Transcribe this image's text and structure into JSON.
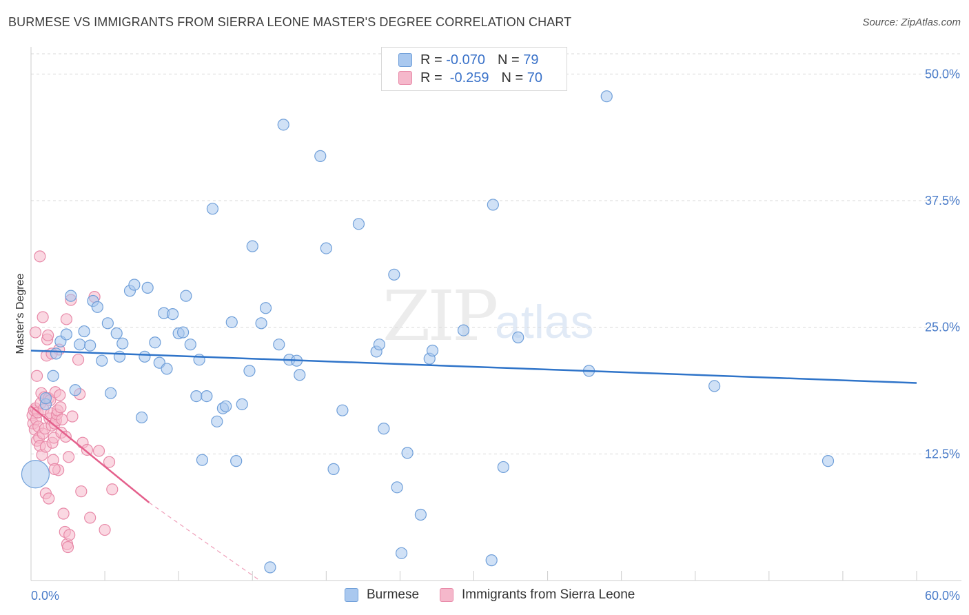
{
  "title": "BURMESE VS IMMIGRANTS FROM SIERRA LEONE MASTER'S DEGREE CORRELATION CHART",
  "source": "Source: ZipAtlas.com",
  "watermark": {
    "zip": "ZIP",
    "atlas": "atlas"
  },
  "colors": {
    "blue_fill": "#a9c8ef",
    "blue_stroke": "#6f9fd9",
    "blue_line": "#2f74c9",
    "pink_fill": "#f5b8cb",
    "pink_stroke": "#e889a8",
    "pink_line": "#e4608c",
    "grid": "#d9d9d9",
    "tick_label": "#4a7cc9"
  },
  "legend": {
    "rows": [
      {
        "r_label": "R = ",
        "r_value": "-0.070",
        "n_label": "N = ",
        "n_value": "79",
        "color": "#a9c8ef",
        "stroke": "#6f9fd9"
      },
      {
        "r_label": "R = ",
        "r_value": " -0.259",
        "n_label": "N = ",
        "n_value": "70",
        "color": "#f5b8cb",
        "stroke": "#e889a8"
      }
    ]
  },
  "bottom_legend": [
    {
      "label": "Burmese",
      "color": "#a9c8ef",
      "stroke": "#6f9fd9"
    },
    {
      "label": "Immigrants from Sierra Leone",
      "color": "#f5b8cb",
      "stroke": "#e889a8"
    }
  ],
  "chart_data": {
    "type": "scatter",
    "title": "BURMESE VS IMMIGRANTS FROM SIERRA LEONE MASTER'S DEGREE CORRELATION CHART",
    "xlabel": "",
    "ylabel": "Master's Degree",
    "xlim": [
      0,
      60
    ],
    "ylim": [
      0,
      52
    ],
    "x_tick_labels": [
      {
        "value": 0,
        "label": "0.0%"
      },
      {
        "value": 60,
        "label": "60.0%"
      }
    ],
    "y_tick_labels": [
      {
        "value": 12.5,
        "label": "12.5%"
      },
      {
        "value": 25,
        "label": "25.0%"
      },
      {
        "value": 37.5,
        "label": "37.5%"
      },
      {
        "value": 50,
        "label": "50.0%"
      }
    ],
    "series": [
      {
        "name": "Burmese",
        "r": -0.07,
        "n": 79,
        "trend": {
          "x0": 0,
          "y0": 22.7,
          "x1": 60,
          "y1": 19.5
        },
        "points": [
          [
            1.0,
            17.4
          ],
          [
            1.0,
            18.0
          ],
          [
            1.5,
            20.2
          ],
          [
            1.7,
            22.4
          ],
          [
            2.0,
            23.6
          ],
          [
            2.4,
            24.3
          ],
          [
            2.7,
            28.1
          ],
          [
            3.0,
            18.8
          ],
          [
            3.3,
            23.3
          ],
          [
            3.6,
            24.6
          ],
          [
            4.0,
            23.2
          ],
          [
            4.2,
            27.6
          ],
          [
            4.5,
            27.0
          ],
          [
            4.8,
            21.7
          ],
          [
            5.2,
            25.4
          ],
          [
            5.4,
            18.5
          ],
          [
            5.8,
            24.4
          ],
          [
            6.0,
            22.1
          ],
          [
            6.2,
            23.4
          ],
          [
            6.7,
            28.6
          ],
          [
            7.0,
            29.2
          ],
          [
            7.5,
            16.1
          ],
          [
            7.7,
            22.1
          ],
          [
            7.9,
            28.9
          ],
          [
            8.4,
            23.5
          ],
          [
            8.7,
            21.5
          ],
          [
            9.0,
            26.4
          ],
          [
            9.2,
            20.9
          ],
          [
            9.6,
            26.3
          ],
          [
            10.0,
            24.4
          ],
          [
            10.3,
            24.5
          ],
          [
            10.5,
            28.1
          ],
          [
            10.8,
            23.3
          ],
          [
            11.2,
            18.2
          ],
          [
            11.4,
            21.8
          ],
          [
            11.6,
            11.9
          ],
          [
            11.9,
            18.2
          ],
          [
            12.3,
            36.7
          ],
          [
            12.6,
            15.7
          ],
          [
            13.0,
            17.0
          ],
          [
            13.2,
            17.2
          ],
          [
            13.6,
            25.5
          ],
          [
            13.9,
            11.8
          ],
          [
            14.3,
            17.4
          ],
          [
            14.8,
            20.7
          ],
          [
            15.0,
            33.0
          ],
          [
            15.6,
            25.4
          ],
          [
            15.9,
            26.9
          ],
          [
            16.2,
            1.3
          ],
          [
            16.8,
            23.3
          ],
          [
            17.1,
            45.0
          ],
          [
            17.5,
            21.8
          ],
          [
            18.0,
            21.7
          ],
          [
            18.2,
            20.3
          ],
          [
            19.6,
            41.9
          ],
          [
            20.0,
            32.8
          ],
          [
            20.5,
            11.0
          ],
          [
            21.1,
            16.8
          ],
          [
            22.2,
            35.2
          ],
          [
            23.4,
            22.6
          ],
          [
            23.6,
            23.3
          ],
          [
            23.9,
            15.0
          ],
          [
            24.6,
            30.2
          ],
          [
            24.8,
            9.2
          ],
          [
            25.1,
            2.7
          ],
          [
            25.5,
            12.6
          ],
          [
            26.4,
            6.5
          ],
          [
            27.0,
            21.9
          ],
          [
            27.2,
            22.7
          ],
          [
            29.3,
            24.7
          ],
          [
            31.2,
            2.0
          ],
          [
            31.3,
            37.1
          ],
          [
            32.0,
            11.2
          ],
          [
            33.0,
            24.0
          ],
          [
            37.8,
            20.7
          ],
          [
            39.0,
            47.8
          ],
          [
            46.3,
            19.2
          ],
          [
            54.0,
            11.8
          ],
          [
            0.3,
            10.5
          ]
        ]
      },
      {
        "name": "Immigrants from Sierra Leone",
        "r": -0.259,
        "n": 70,
        "trend": {
          "x0": 0,
          "y0": 17.2,
          "x1": 8.0,
          "y1": 7.7
        },
        "trend_dashed": {
          "x0": 8.0,
          "y0": 7.7,
          "x1": 15.5,
          "y1": 0
        },
        "points": [
          [
            0.1,
            16.3
          ],
          [
            0.15,
            15.5
          ],
          [
            0.2,
            16.8
          ],
          [
            0.25,
            14.9
          ],
          [
            0.3,
            17.0
          ],
          [
            0.35,
            15.9
          ],
          [
            0.4,
            13.8
          ],
          [
            0.45,
            16.6
          ],
          [
            0.5,
            15.2
          ],
          [
            0.55,
            14.1
          ],
          [
            0.6,
            13.3
          ],
          [
            0.65,
            17.5
          ],
          [
            0.7,
            18.5
          ],
          [
            0.75,
            12.4
          ],
          [
            0.8,
            14.5
          ],
          [
            0.85,
            16.9
          ],
          [
            0.9,
            18.1
          ],
          [
            0.95,
            15.0
          ],
          [
            1.0,
            13.2
          ],
          [
            1.05,
            22.2
          ],
          [
            1.1,
            23.8
          ],
          [
            1.15,
            24.2
          ],
          [
            1.2,
            18.0
          ],
          [
            1.25,
            16.0
          ],
          [
            1.3,
            17.8
          ],
          [
            1.35,
            16.5
          ],
          [
            1.4,
            15.3
          ],
          [
            1.45,
            13.6
          ],
          [
            1.5,
            11.9
          ],
          [
            1.55,
            14.1
          ],
          [
            1.6,
            15.5
          ],
          [
            1.65,
            18.6
          ],
          [
            1.7,
            15.8
          ],
          [
            1.75,
            16.4
          ],
          [
            1.8,
            16.8
          ],
          [
            1.85,
            10.9
          ],
          [
            1.9,
            22.8
          ],
          [
            1.95,
            18.3
          ],
          [
            2.0,
            17.1
          ],
          [
            2.05,
            14.6
          ],
          [
            2.1,
            15.9
          ],
          [
            2.2,
            6.6
          ],
          [
            2.3,
            4.8
          ],
          [
            2.35,
            14.2
          ],
          [
            2.4,
            25.8
          ],
          [
            2.45,
            3.6
          ],
          [
            2.5,
            3.3
          ],
          [
            2.55,
            12.2
          ],
          [
            2.6,
            4.5
          ],
          [
            2.7,
            27.7
          ],
          [
            2.8,
            16.2
          ],
          [
            3.2,
            21.8
          ],
          [
            3.3,
            18.4
          ],
          [
            3.4,
            8.8
          ],
          [
            3.5,
            13.6
          ],
          [
            3.8,
            12.9
          ],
          [
            4.0,
            6.2
          ],
          [
            4.3,
            28.0
          ],
          [
            4.6,
            12.8
          ],
          [
            5.0,
            5.0
          ],
          [
            5.3,
            11.7
          ],
          [
            5.5,
            9.0
          ],
          [
            0.4,
            20.2
          ],
          [
            0.6,
            32.0
          ],
          [
            1.0,
            8.6
          ],
          [
            1.2,
            8.1
          ],
          [
            1.6,
            11.0
          ],
          [
            0.3,
            24.5
          ],
          [
            0.8,
            26.0
          ],
          [
            1.4,
            22.4
          ]
        ]
      }
    ]
  }
}
